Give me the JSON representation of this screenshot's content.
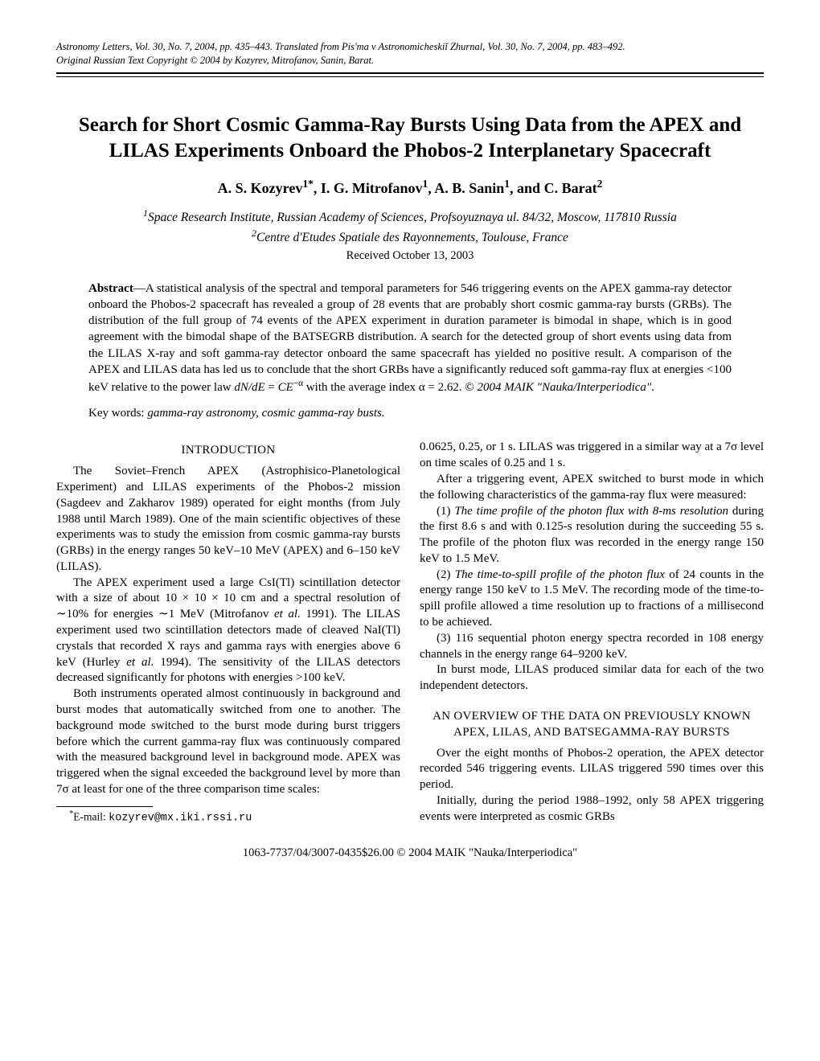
{
  "meta": {
    "line1": "Astronomy Letters, Vol. 30, No. 7,  2004, pp. 435–443.  Translated from Pis'ma v Astronomicheskiĭ Zhurnal, Vol. 30, No. 7, 2004, pp. 483–492.",
    "line2": "Original Russian Text Copyright © 2004 by Kozyrev, Mitrofanov, Sanin, Barat."
  },
  "title": "Search for Short Cosmic Gamma-Ray Bursts Using Data from the APEX and LILAS Experiments Onboard the Phobos-2 Interplanetary Spacecraft",
  "authors_html": "A. S. Kozyrev<sup>1*</sup>,  I. G. Mitrofanov<sup>1</sup>,  A. B. Sanin<sup>1</sup>, and  C. Barat<sup>2</sup>",
  "affil1_html": "<sup>1</sup>Space Research Institute, Russian Academy of Sciences, Profsoyuznaya ul. 84/32, Moscow, 117810 Russia",
  "affil2_html": "<sup>2</sup>Centre d'Etudes Spatiale des Rayonnements, Toulouse, France",
  "received": "Received October 13, 2003",
  "abstract_lead": "Abstract",
  "abstract_html": "—A statistical analysis of the spectral and temporal parameters for 546 triggering events on the APEX gamma-ray detector onboard the Phobos-2 spacecraft has revealed a group of 28 events that are probably short cosmic gamma-ray bursts (GRBs). The distribution of the full group of 74 events of the APEX experiment in duration parameter is bimodal in shape, which is in good agreement with the bimodal shape of the BATSEGRB distribution. A search for the detected group of short events using data from the LILAS X-ray and soft gamma-ray detector onboard the same spacecraft has yielded no positive result. A comparison of the APEX and LILAS data has led us to conclude that the short GRBs have a significantly reduced soft gamma-ray flux at energies &lt;100 keV relative to the power law <i>dN/dE</i> = <i>CE</i><sup>−α</sup> with the average index α = 2.62.   © <i>2004 MAIK \"Nauka/Interperiodica\"</i>.",
  "keywords_html": "Key words: <i>gamma-ray astronomy, cosmic gamma-ray busts.</i>",
  "sections": {
    "intro_head": "INTRODUCTION",
    "intro_p1": "The Soviet–French APEX (Astrophisico-Planetological Experiment) and LILAS experiments of the Phobos-2 mission (Sagdeev and Zakharov 1989) operated for eight months (from July 1988 until March 1989). One of the main scientific objectives of these experiments was to study the emission from cosmic gamma-ray bursts (GRBs) in the energy ranges 50 keV–10 MeV (APEX) and 6–150 keV (LILAS).",
    "intro_p2_html": "The APEX experiment used a large CsI(Tl) scintillation detector with a size of about 10 × 10 × 10 cm and a spectral resolution of ∼10% for energies ∼1 MeV (Mitrofanov <i>et al.</i> 1991). The LILAS experiment used two scintillation detectors made of cleaved NaI(Tl) crystals that recorded X rays and gamma rays with energies above 6 keV (Hurley <i>et al.</i> 1994). The sensitivity of the LILAS detectors decreased significantly for photons with energies &gt;100 keV.",
    "intro_p3": "Both instruments operated almost continuously in background and burst modes that automatically switched from one to another. The background mode switched to the burst mode during burst triggers before which the current gamma-ray flux was continuously compared with the measured background level in background mode. APEX was triggered when the signal exceeded the background level by more than 7σ at least for one of the three comparison time scales:",
    "col2_p1": "0.0625, 0.25, or 1 s. LILAS was triggered in a similar way at a 7σ level on time scales of 0.25 and 1 s.",
    "col2_p2": "After a triggering event, APEX switched to burst mode in which the following characteristics of the gamma-ray flux were measured:",
    "col2_item1_html": "(1) <i>The time profile of the photon flux with 8-ms resolution</i> during the first 8.6 s and with 0.125-s resolution during the succeeding 55 s. The profile of the photon flux was recorded in the energy range 150 keV to 1.5 MeV.",
    "col2_item2_html": "(2) <i>The time-to-spill profile of the photon flux</i> of 24 counts in the energy range 150 keV to 1.5 MeV. The recording mode of the time-to-spill profile allowed a time resolution up to fractions of a millisecond to be achieved.",
    "col2_item3": "(3) 116 sequential photon energy spectra recorded in 108 energy channels in the energy range 64–9200 keV.",
    "col2_p3": "In burst mode, LILAS produced similar data for each of the two independent detectors.",
    "overview_head": "AN OVERVIEW OF THE DATA ON PREVIOUSLY KNOWN APEX, LILAS, AND BATSEGAMMA-RAY BURSTS",
    "overview_p1": "Over the eight months of Phobos-2 operation, the APEX detector recorded 546 triggering events. LILAS triggered 590 times over this period.",
    "overview_p2": "Initially, during the period 1988–1992, only 58 APEX triggering events were interpreted as cosmic GRBs"
  },
  "footnote_html": "<sup>*</sup>E-mail: <span class=\"mono\">kozyrev@mx.iki.rssi.ru</span>",
  "footer": "1063-7737/04/3007-0435$26.00 © 2004 MAIK \"Nauka/Interperiodica\""
}
